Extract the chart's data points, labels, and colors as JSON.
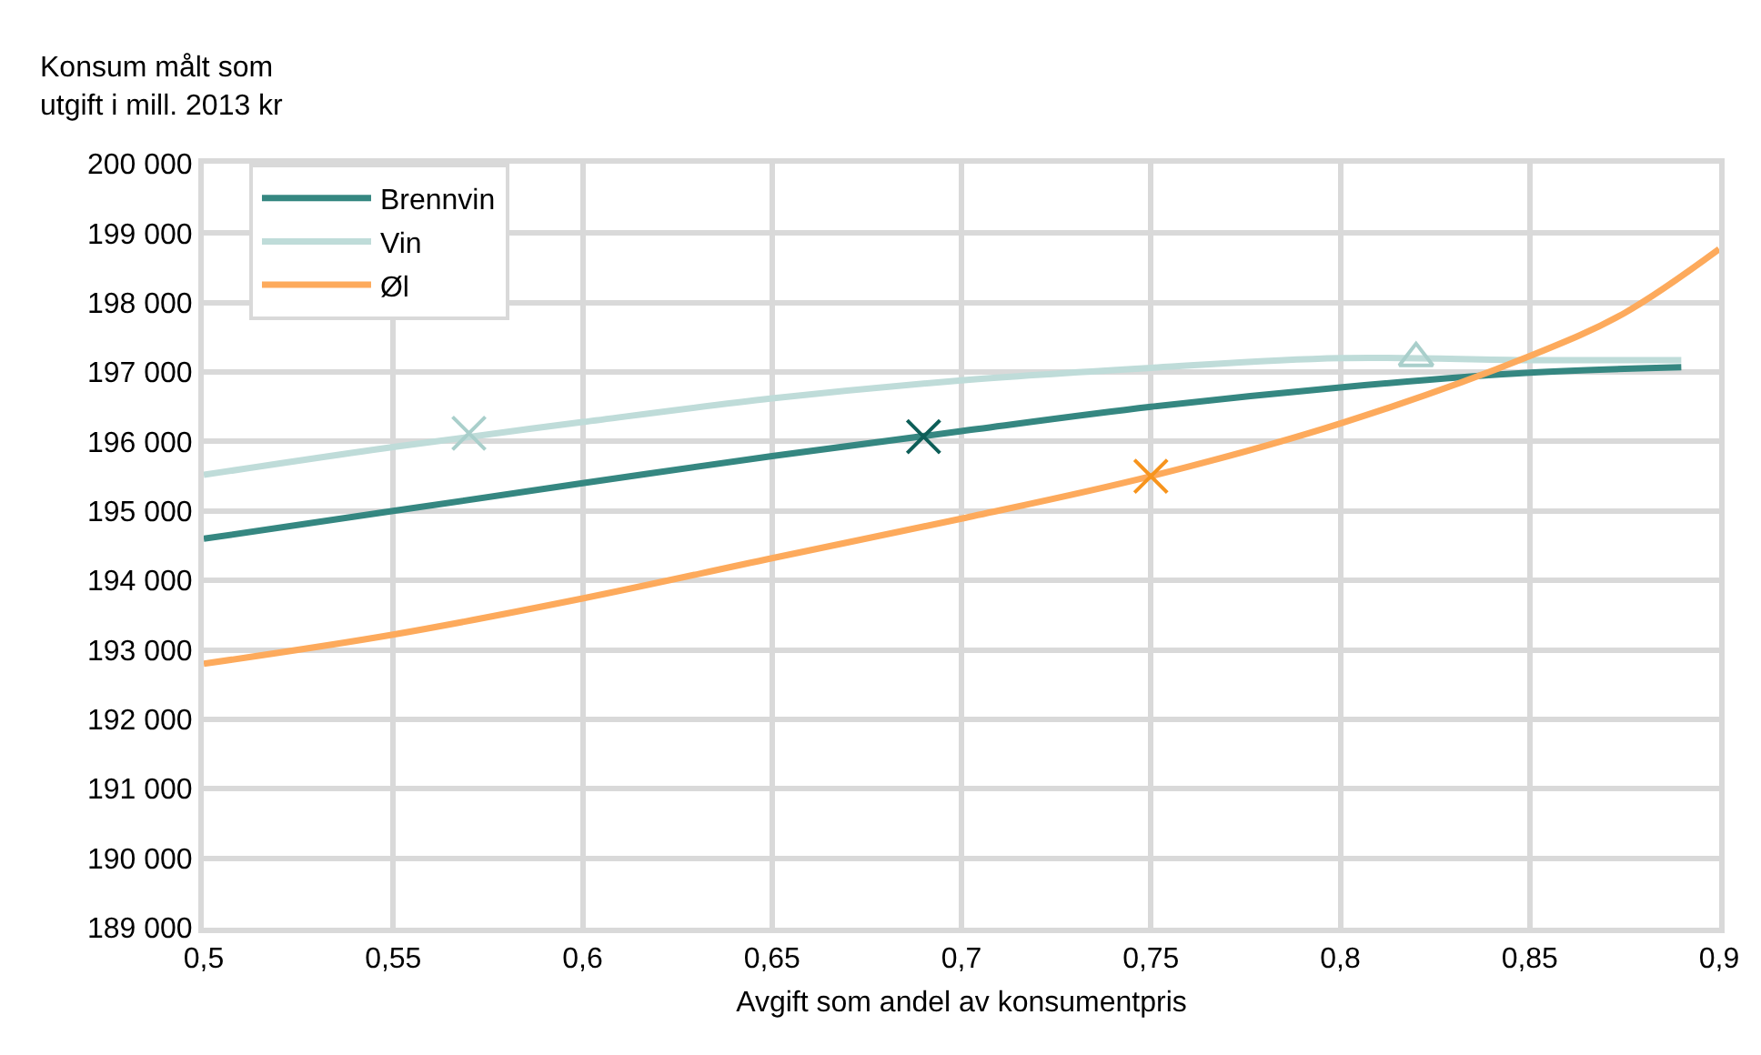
{
  "chart_data": {
    "type": "line",
    "ylabel": "Konsum målt som\nutgift i mill. 2013 kr",
    "xlabel": "Avgift som andel av konsumentpris",
    "xlim": [
      0.5,
      0.9
    ],
    "xticks": [
      {
        "value": 0.5,
        "label": "0,5"
      },
      {
        "value": 0.55,
        "label": "0,55"
      },
      {
        "value": 0.6,
        "label": "0,6"
      },
      {
        "value": 0.65,
        "label": "0,65"
      },
      {
        "value": 0.7,
        "label": "0,7"
      },
      {
        "value": 0.75,
        "label": "0,75"
      },
      {
        "value": 0.8,
        "label": "0,8"
      },
      {
        "value": 0.85,
        "label": "0,85"
      },
      {
        "value": 0.9,
        "label": "0,9"
      }
    ],
    "ylim": [
      189000,
      200000
    ],
    "yticks": [
      {
        "value": 189000,
        "label": "189 000"
      },
      {
        "value": 190000,
        "label": "190 000"
      },
      {
        "value": 191000,
        "label": "191 000"
      },
      {
        "value": 192000,
        "label": "192 000"
      },
      {
        "value": 193000,
        "label": "193 000"
      },
      {
        "value": 194000,
        "label": "194 000"
      },
      {
        "value": 195000,
        "label": "195 000"
      },
      {
        "value": 196000,
        "label": "196 000"
      },
      {
        "value": 197000,
        "label": "197 000"
      },
      {
        "value": 198000,
        "label": "198 000"
      },
      {
        "value": 199000,
        "label": "199 000"
      },
      {
        "value": 200000,
        "label": "200 000"
      }
    ],
    "grid": true,
    "legend": "top left",
    "line_style": "solid",
    "series": [
      {
        "name": "Brennvin",
        "type": "line",
        "marker": "none",
        "color": "#358781",
        "x": [
          0.5,
          0.55,
          0.6,
          0.65,
          0.7,
          0.75,
          0.8,
          0.85,
          0.89
        ],
        "values": [
          194600,
          195000,
          195400,
          195790,
          196150,
          196500,
          196780,
          196990,
          197070
        ]
      },
      {
        "name": "Vin",
        "type": "line",
        "marker": "none",
        "color": "#bfdcd9",
        "x": [
          0.5,
          0.55,
          0.6,
          0.65,
          0.7,
          0.75,
          0.8,
          0.85,
          0.89
        ],
        "values": [
          195520,
          195920,
          196280,
          196620,
          196880,
          197060,
          197200,
          197170,
          197170
        ]
      },
      {
        "name": "Øl",
        "type": "line",
        "marker": "none",
        "color": "#fdaa5c",
        "x": [
          0.5,
          0.55,
          0.6,
          0.65,
          0.7,
          0.75,
          0.8,
          0.85,
          0.875,
          0.9
        ],
        "values": [
          192800,
          193220,
          193740,
          194320,
          194890,
          195500,
          196260,
          197230,
          197850,
          198770
        ]
      },
      {
        "type": "scatter",
        "marker": "cross",
        "color": "#a9cfcb",
        "x": [
          0.57
        ],
        "values": [
          196120
        ]
      },
      {
        "type": "scatter",
        "marker": "cross",
        "color": "#0d5e58",
        "x": [
          0.69
        ],
        "values": [
          196070
        ]
      },
      {
        "type": "scatter",
        "marker": "cross",
        "color": "#f7941d",
        "x": [
          0.75
        ],
        "values": [
          195500
        ]
      },
      {
        "type": "scatter",
        "marker": "triangle",
        "color": "#a9cfcb",
        "x": [
          0.82
        ],
        "values": [
          197200
        ]
      }
    ]
  }
}
